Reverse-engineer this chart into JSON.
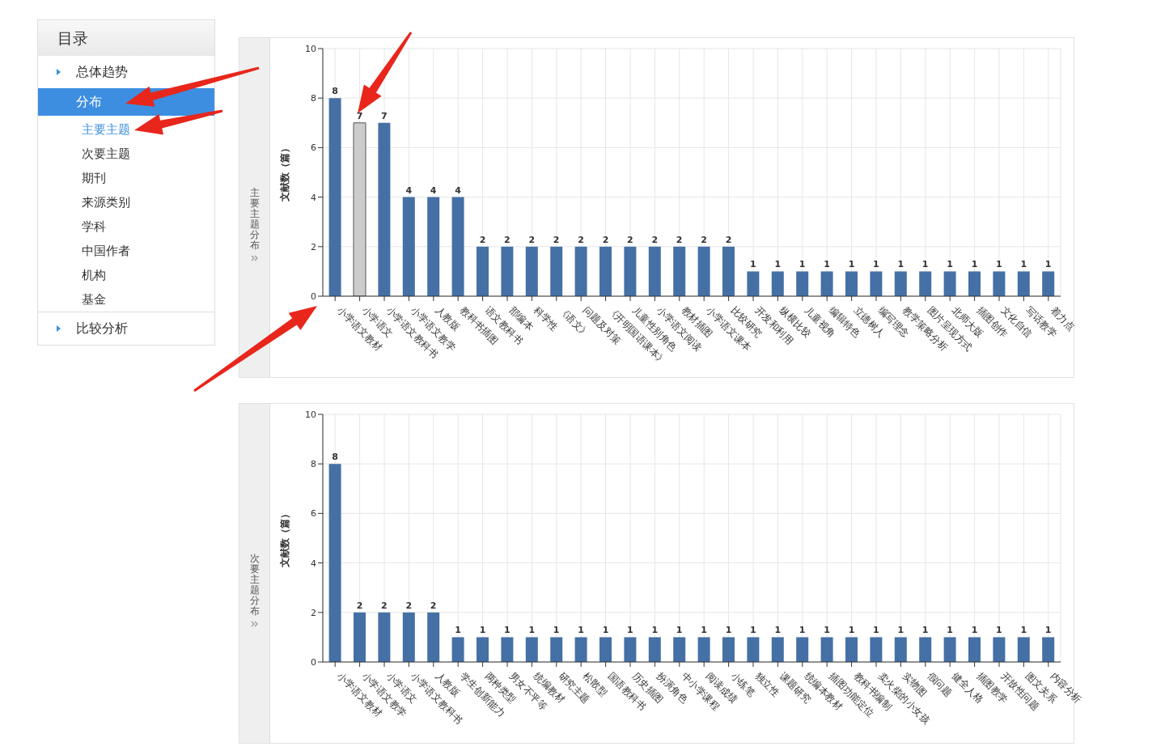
{
  "chart_data": [
    {
      "type": "other",
      "title": "目录",
      "annotations": [
        "总体趋势",
        "分布",
        "主要主题",
        "次要主题",
        "期刊",
        "来源类别",
        "学科",
        "中国作者",
        "机构",
        "基金",
        "比较分析"
      ]
    },
    {
      "type": "bar",
      "title": "主要主题分布",
      "ylabel": "文献数（篇）",
      "categories": [
        "小学语文教材",
        "小学语文",
        "小学语文教科书",
        "小学语文教学",
        "人教版",
        "教科书插图",
        "语文教科书",
        "部编本",
        "科学性",
        "《语文》",
        "问题及对策",
        "《开明国语课本》",
        "儿童性别角色",
        "小学语文阅读",
        "教材插图",
        "小学语文课本",
        "比较研究",
        "开发和利用",
        "纵横比较",
        "儿童视角",
        "编辑特色",
        "立德树人",
        "编写理念",
        "教学策略分析",
        "图片呈现方式",
        "北师大版",
        "插图创作",
        "文化自信",
        "写话教学",
        "着力点"
      ],
      "values": [
        8,
        7,
        7,
        4,
        4,
        4,
        2,
        2,
        2,
        2,
        2,
        2,
        2,
        2,
        2,
        2,
        2,
        1,
        1,
        1,
        1,
        1,
        1,
        1,
        1,
        1,
        1,
        1,
        1,
        1
      ],
      "colors": [
        "#4470a6",
        "#cccccc",
        "#4470a6",
        "#4470a6",
        "#4470a6",
        "#4470a6",
        "#4470a6",
        "#4470a6",
        "#4470a6",
        "#4470a6",
        "#4470a6",
        "#4470a6",
        "#4470a6",
        "#4470a6",
        "#4470a6",
        "#4470a6",
        "#4470a6",
        "#4470a6",
        "#4470a6",
        "#4470a6",
        "#4470a6",
        "#4470a6",
        "#4470a6",
        "#4470a6",
        "#4470a6",
        "#4470a6",
        "#4470a6",
        "#4470a6",
        "#4470a6",
        "#4470a6"
      ],
      "ylim": [
        0,
        10
      ],
      "yticks": [
        0,
        2,
        4,
        6,
        8,
        10
      ],
      "grid": true,
      "data_labels": true
    },
    {
      "type": "bar",
      "title": "次要主题分布",
      "ylabel": "文献数（篇）",
      "categories": [
        "小学语文教材",
        "小学语文教学",
        "小学语文",
        "小学语文教科书",
        "人教版",
        "学生创新能力",
        "两种类型",
        "男女不平等",
        "统编教材",
        "研究主题",
        "松散型",
        "国语教科书",
        "历史插图",
        "扮演角色",
        "中小学课程",
        "阅读成绩",
        "小练笔",
        "独立性",
        "课题研究",
        "统编本教材",
        "插图功能定位",
        "教科书编制",
        "卖火柴的小女孩",
        "实物图",
        "假问题",
        "健全人格",
        "插图教学",
        "开放性问题",
        "图文关系",
        "内容分析"
      ],
      "values": [
        8,
        2,
        2,
        2,
        2,
        1,
        1,
        1,
        1,
        1,
        1,
        1,
        1,
        1,
        1,
        1,
        1,
        1,
        1,
        1,
        1,
        1,
        1,
        1,
        1,
        1,
        1,
        1,
        1,
        1
      ],
      "colors": [
        "#4470a6",
        "#4470a6",
        "#4470a6",
        "#4470a6",
        "#4470a6",
        "#4470a6",
        "#4470a6",
        "#4470a6",
        "#4470a6",
        "#4470a6",
        "#4470a6",
        "#4470a6",
        "#4470a6",
        "#4470a6",
        "#4470a6",
        "#4470a6",
        "#4470a6",
        "#4470a6",
        "#4470a6",
        "#4470a6",
        "#4470a6",
        "#4470a6",
        "#4470a6",
        "#4470a6",
        "#4470a6",
        "#4470a6",
        "#4470a6",
        "#4470a6",
        "#4470a6",
        "#4470a6"
      ],
      "ylim": [
        0,
        10
      ],
      "yticks": [
        0,
        2,
        4,
        6,
        8,
        10
      ],
      "grid": true,
      "data_labels": true
    }
  ]
}
